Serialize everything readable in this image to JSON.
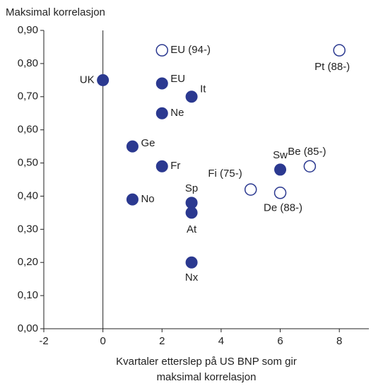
{
  "chart_data": {
    "type": "scatter",
    "ylabel": "Maksimal korrelasjon",
    "xlabel": [
      "Kvartaler etterslep på US BNP som gir",
      "maksimal korrelasjon"
    ],
    "xlim": [
      -2,
      9
    ],
    "xticks": [
      -2,
      0,
      2,
      4,
      6,
      8
    ],
    "ylim": [
      0,
      0.9
    ],
    "yticks": [
      {
        "value": 0,
        "label": "0,00"
      },
      {
        "value": 0.1,
        "label": "0,10"
      },
      {
        "value": 0.2,
        "label": "0,20"
      },
      {
        "value": 0.3,
        "label": "0,30"
      },
      {
        "value": 0.4,
        "label": "0,40"
      },
      {
        "value": 0.5,
        "label": "0,50"
      },
      {
        "value": 0.6,
        "label": "0,60"
      },
      {
        "value": 0.7,
        "label": "0,70"
      },
      {
        "value": 0.8,
        "label": "0,80"
      },
      {
        "value": 0.9,
        "label": "0,90"
      }
    ],
    "color": "#2b3990",
    "series": [
      {
        "marker": "filled",
        "labels": [
          "UK",
          "EU",
          "It",
          "Ne",
          "Ge",
          "Fr",
          "No",
          "Sp",
          "At",
          "Nx",
          "Sw"
        ],
        "x": [
          0,
          2,
          3,
          2,
          1,
          2,
          1,
          3,
          3,
          3,
          6
        ],
        "values": [
          0.75,
          0.74,
          0.7,
          0.65,
          0.55,
          0.49,
          0.39,
          0.38,
          0.35,
          0.2,
          0.48
        ]
      },
      {
        "marker": "open",
        "labels": [
          "EU (94-)",
          "Pt (88-)",
          "Be (85-)",
          "Fi (75-)",
          "De (88-)"
        ],
        "x": [
          2,
          8,
          7,
          5,
          6
        ],
        "values": [
          0.84,
          0.84,
          0.49,
          0.42,
          0.41
        ]
      }
    ]
  }
}
